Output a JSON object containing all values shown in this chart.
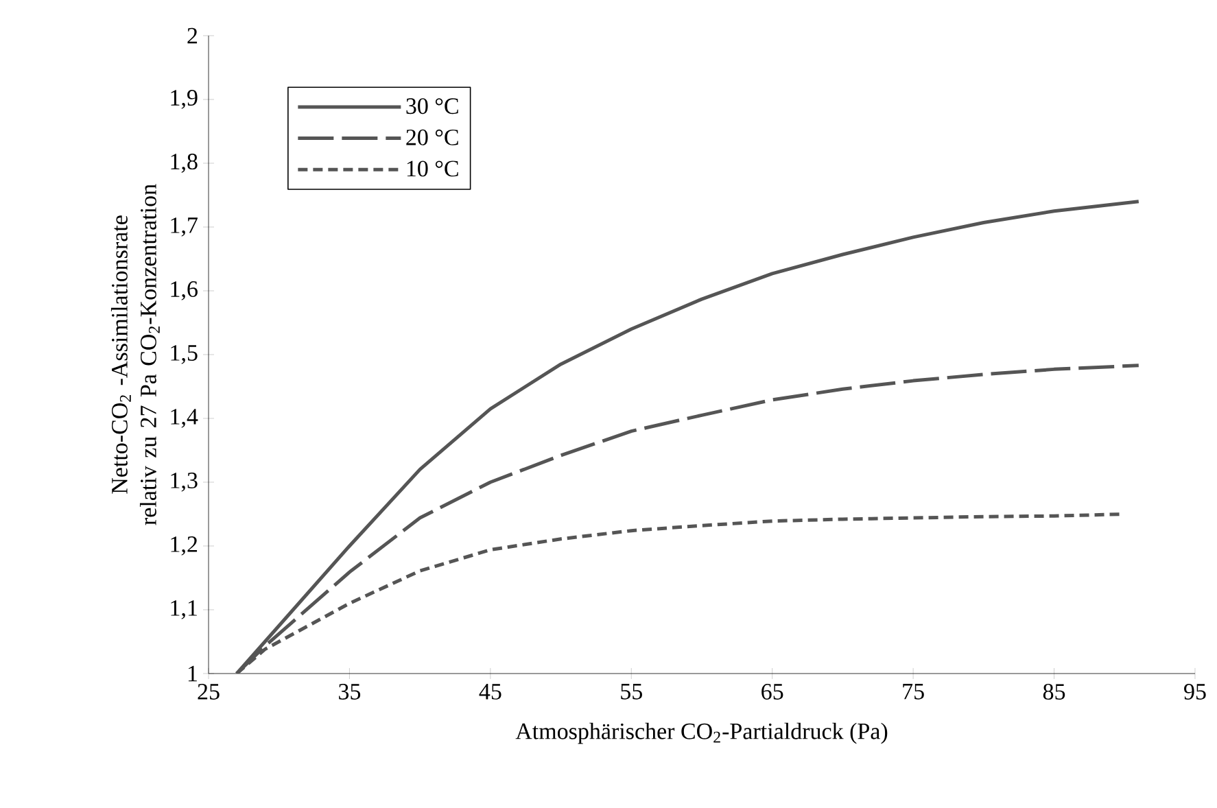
{
  "chart_data": {
    "type": "line",
    "xlabel": "Atmosphärischer CO$_{2}$-Partialdruck (Pa)",
    "ylabel": "Netto-CO$_{2}$ -Assimilationsrate relativ zu 27 Pa CO$_{2}$-Konzentration",
    "xlim": [
      25,
      95
    ],
    "xticks": [
      25,
      35,
      45,
      55,
      65,
      75,
      85,
      95
    ],
    "ylim": [
      1,
      2
    ],
    "yticks": [
      1,
      {
        "value": 1.1,
        "label": "1,1"
      },
      {
        "value": 1.2,
        "label": "1,2"
      },
      {
        "value": 1.3,
        "label": "1,3"
      },
      {
        "value": 1.4,
        "label": "1,4"
      },
      {
        "value": 1.5,
        "label": "1,5"
      },
      {
        "value": 1.6,
        "label": "1,6"
      },
      {
        "value": 1.7,
        "label": "1,7"
      },
      {
        "value": 1.8,
        "label": "1,8"
      },
      {
        "value": 1.9,
        "label": "1,9"
      },
      2
    ],
    "legend": "top left",
    "grid": false,
    "series": [
      {
        "name": "30 °C",
        "color": "#555555",
        "line_style": "solid",
        "x": [
          27,
          29,
          35,
          40,
          45,
          50,
          55,
          60,
          65,
          70,
          75,
          80,
          85,
          91
        ],
        "values": [
          1.0,
          1.05,
          1.2,
          1.32,
          1.415,
          1.485,
          1.54,
          1.587,
          1.627,
          1.657,
          1.684,
          1.707,
          1.725,
          1.74
        ]
      },
      {
        "name": "20 °C",
        "color": "#555555",
        "line_style": "dashed",
        "x": [
          27,
          29,
          35,
          40,
          45,
          50,
          55,
          60,
          65,
          70,
          75,
          80,
          85,
          91
        ],
        "values": [
          1.0,
          1.043,
          1.159,
          1.244,
          1.3,
          1.342,
          1.38,
          1.405,
          1.429,
          1.446,
          1.459,
          1.469,
          1.477,
          1.483
        ]
      },
      {
        "name": "10 °C",
        "color": "#555555",
        "line_style": "dotted",
        "x": [
          27,
          29,
          35,
          40,
          45,
          50,
          55,
          60,
          65,
          70,
          75,
          80,
          85,
          90
        ],
        "values": [
          1.0,
          1.038,
          1.11,
          1.161,
          1.194,
          1.211,
          1.224,
          1.232,
          1.239,
          1.242,
          1.244,
          1.246,
          1.247,
          1.25
        ]
      }
    ]
  }
}
